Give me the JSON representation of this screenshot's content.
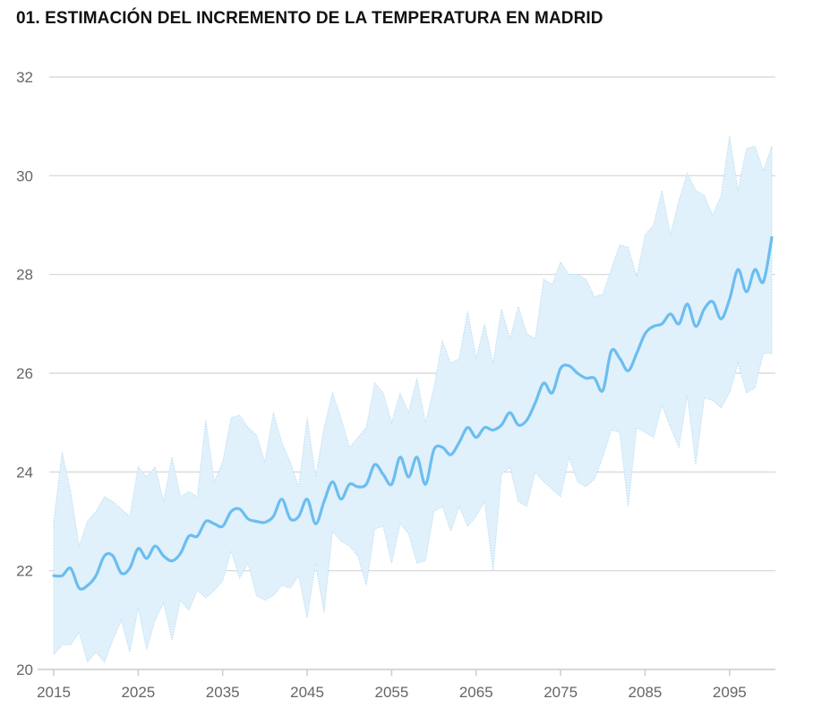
{
  "chart_data": {
    "type": "line",
    "title": "01. ESTIMACIÓN DEL INCREMENTO DE LA TEMPERATURA EN MADRID",
    "xlabel": "",
    "ylabel": "",
    "xlim": [
      2015,
      2100
    ],
    "ylim": [
      20,
      32
    ],
    "x_ticks": [
      2015,
      2025,
      2035,
      2045,
      2055,
      2065,
      2075,
      2085,
      2095
    ],
    "y_ticks": [
      20,
      22,
      24,
      26,
      28,
      30,
      32
    ],
    "grid": "horizontal",
    "colors": {
      "line": "#6cbdf0",
      "band": "#e0f1fb",
      "band_edge": "#b9dcf2",
      "grid": "#d4d4d4"
    },
    "x_start": 2015,
    "mean": [
      21.9,
      21.9,
      22.05,
      21.65,
      21.7,
      21.9,
      22.3,
      22.3,
      21.95,
      22.05,
      22.45,
      22.25,
      22.5,
      22.3,
      22.2,
      22.35,
      22.7,
      22.7,
      23.0,
      22.95,
      22.9,
      23.2,
      23.25,
      23.05,
      23.0,
      22.98,
      23.1,
      23.45,
      23.05,
      23.1,
      23.45,
      22.95,
      23.4,
      23.8,
      23.45,
      23.75,
      23.7,
      23.75,
      24.15,
      23.95,
      23.75,
      24.3,
      23.9,
      24.3,
      23.75,
      24.45,
      24.5,
      24.35,
      24.6,
      24.9,
      24.7,
      24.9,
      24.85,
      24.95,
      25.2,
      24.95,
      25.05,
      25.4,
      25.8,
      25.6,
      26.1,
      26.15,
      26.0,
      25.9,
      25.9,
      25.65,
      26.45,
      26.3,
      26.05,
      26.4,
      26.8,
      26.95,
      27.0,
      27.2,
      27.0,
      27.4,
      26.95,
      27.3,
      27.45,
      27.1,
      27.5,
      28.1,
      27.65,
      28.1,
      27.85,
      28.75
    ],
    "upper": [
      23.0,
      24.4,
      23.6,
      22.5,
      23.0,
      23.2,
      23.5,
      23.4,
      23.25,
      23.1,
      24.1,
      23.9,
      24.1,
      23.4,
      24.3,
      23.5,
      23.6,
      23.5,
      25.05,
      23.8,
      24.2,
      25.1,
      25.15,
      24.9,
      24.75,
      24.2,
      25.2,
      24.6,
      24.2,
      23.7,
      25.1,
      23.9,
      24.9,
      25.6,
      25.1,
      24.5,
      24.7,
      24.9,
      25.8,
      25.6,
      25.0,
      25.6,
      25.2,
      25.9,
      25.0,
      25.7,
      26.65,
      26.2,
      26.3,
      27.25,
      26.3,
      27.0,
      26.2,
      27.3,
      26.7,
      27.35,
      26.8,
      26.7,
      27.9,
      27.8,
      28.25,
      28.0,
      28.0,
      27.9,
      27.55,
      27.6,
      28.1,
      28.6,
      28.55,
      27.95,
      28.8,
      29.0,
      29.7,
      28.8,
      29.5,
      30.05,
      29.7,
      29.6,
      29.2,
      29.6,
      30.8,
      29.7,
      30.55,
      30.6,
      30.1,
      30.6
    ],
    "lower": [
      20.3,
      20.5,
      20.5,
      20.75,
      20.15,
      20.35,
      20.15,
      20.6,
      21.0,
      20.35,
      21.25,
      20.4,
      21.0,
      21.35,
      20.6,
      21.4,
      21.2,
      21.6,
      21.45,
      21.6,
      21.8,
      22.4,
      21.85,
      22.15,
      21.5,
      21.4,
      21.5,
      21.7,
      21.65,
      21.9,
      21.05,
      22.15,
      21.15,
      22.8,
      22.6,
      22.5,
      22.3,
      21.7,
      22.85,
      22.9,
      22.15,
      22.95,
      22.75,
      22.15,
      22.2,
      23.2,
      23.3,
      22.8,
      23.3,
      22.9,
      23.1,
      23.4,
      22.0,
      23.95,
      24.1,
      23.4,
      23.3,
      24.0,
      23.8,
      23.65,
      23.5,
      24.3,
      23.8,
      23.7,
      23.85,
      24.3,
      24.85,
      24.8,
      23.3,
      24.9,
      24.8,
      24.7,
      25.35,
      24.9,
      24.5,
      25.55,
      24.15,
      25.5,
      25.45,
      25.3,
      25.6,
      26.2,
      25.6,
      25.7,
      26.4,
      26.4
    ]
  }
}
